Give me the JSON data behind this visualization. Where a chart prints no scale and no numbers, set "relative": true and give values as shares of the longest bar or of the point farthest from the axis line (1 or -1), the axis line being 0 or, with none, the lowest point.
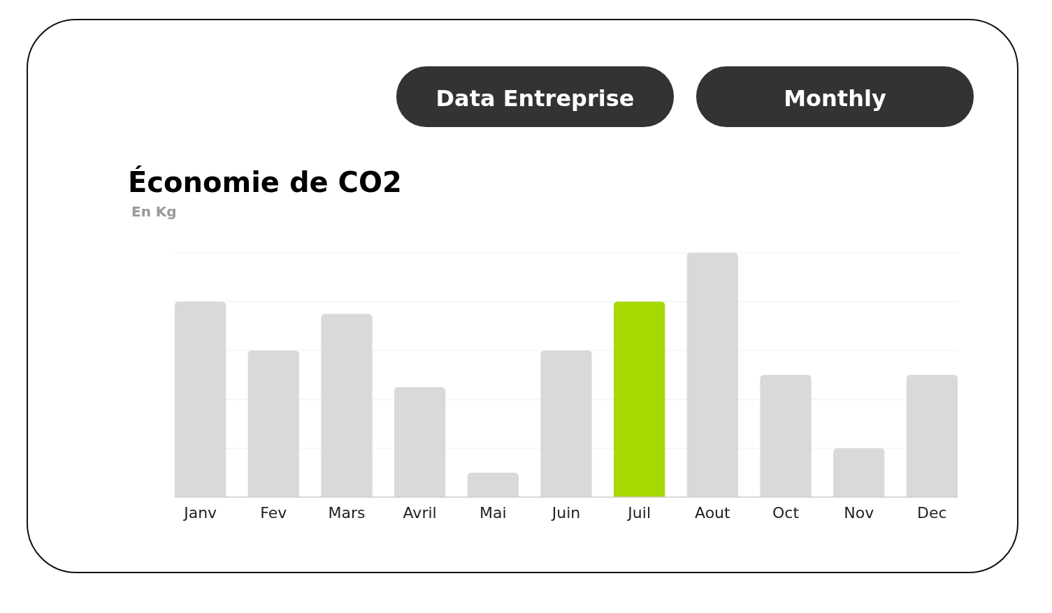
{
  "chart_data": {
    "type": "bar",
    "title": "Économie de CO2",
    "subtitle": "En Kg",
    "annotations": [
      "Data Entreprise",
      "Monthly"
    ],
    "categories": [
      "Janv",
      "Fev",
      "Mars",
      "Avril",
      "Mai",
      "Juin",
      "Juil",
      "Aout",
      "Oct",
      "Nov",
      "Dec"
    ],
    "values": [
      0.8,
      0.6,
      0.75,
      0.45,
      0.1,
      0.6,
      0.8,
      1,
      0.5,
      0.2,
      0.5
    ],
    "colors": [
      "#d9d9d9",
      "#d9d9d9",
      "#d9d9d9",
      "#d9d9d9",
      "#d9d9d9",
      "#d9d9d9",
      "#a6d900",
      "#d9d9d9",
      "#d9d9d9",
      "#d9d9d9",
      "#d9d9d9"
    ],
    "relative": true,
    "grid": "y"
  }
}
